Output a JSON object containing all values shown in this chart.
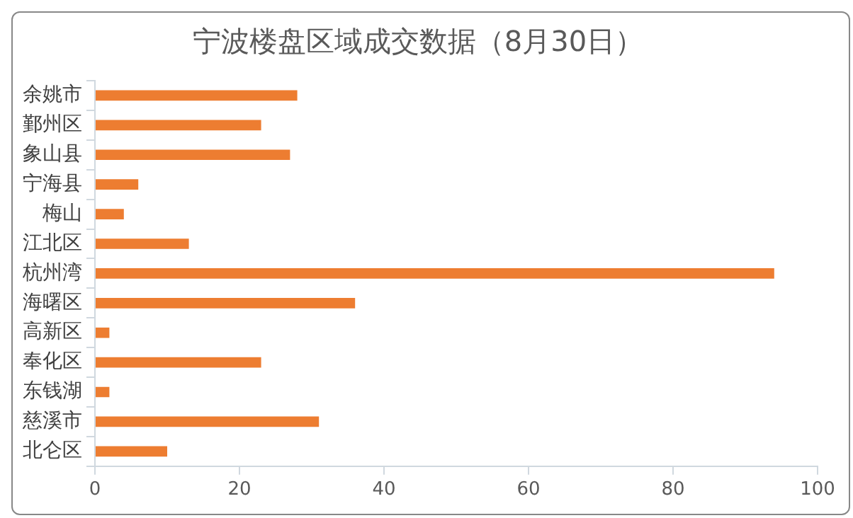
{
  "chart_data": {
    "type": "bar",
    "orientation": "horizontal",
    "title": "宁波楼盘区域成交数据（8月30日）",
    "categories": [
      "余姚市",
      "鄞州区",
      "象山县",
      "宁海县",
      "梅山",
      "江北区",
      "杭州湾",
      "海曙区",
      "高新区",
      "奉化区",
      "东钱湖",
      "慈溪市",
      "北仑区"
    ],
    "values": [
      28,
      23,
      27,
      6,
      4,
      13,
      94,
      36,
      2,
      23,
      2,
      31,
      10
    ],
    "color": "#ed7d31",
    "xlim": [
      0,
      100
    ],
    "xticks": [
      0,
      20,
      40,
      60,
      80,
      100
    ],
    "grid": false,
    "legend": false
  }
}
